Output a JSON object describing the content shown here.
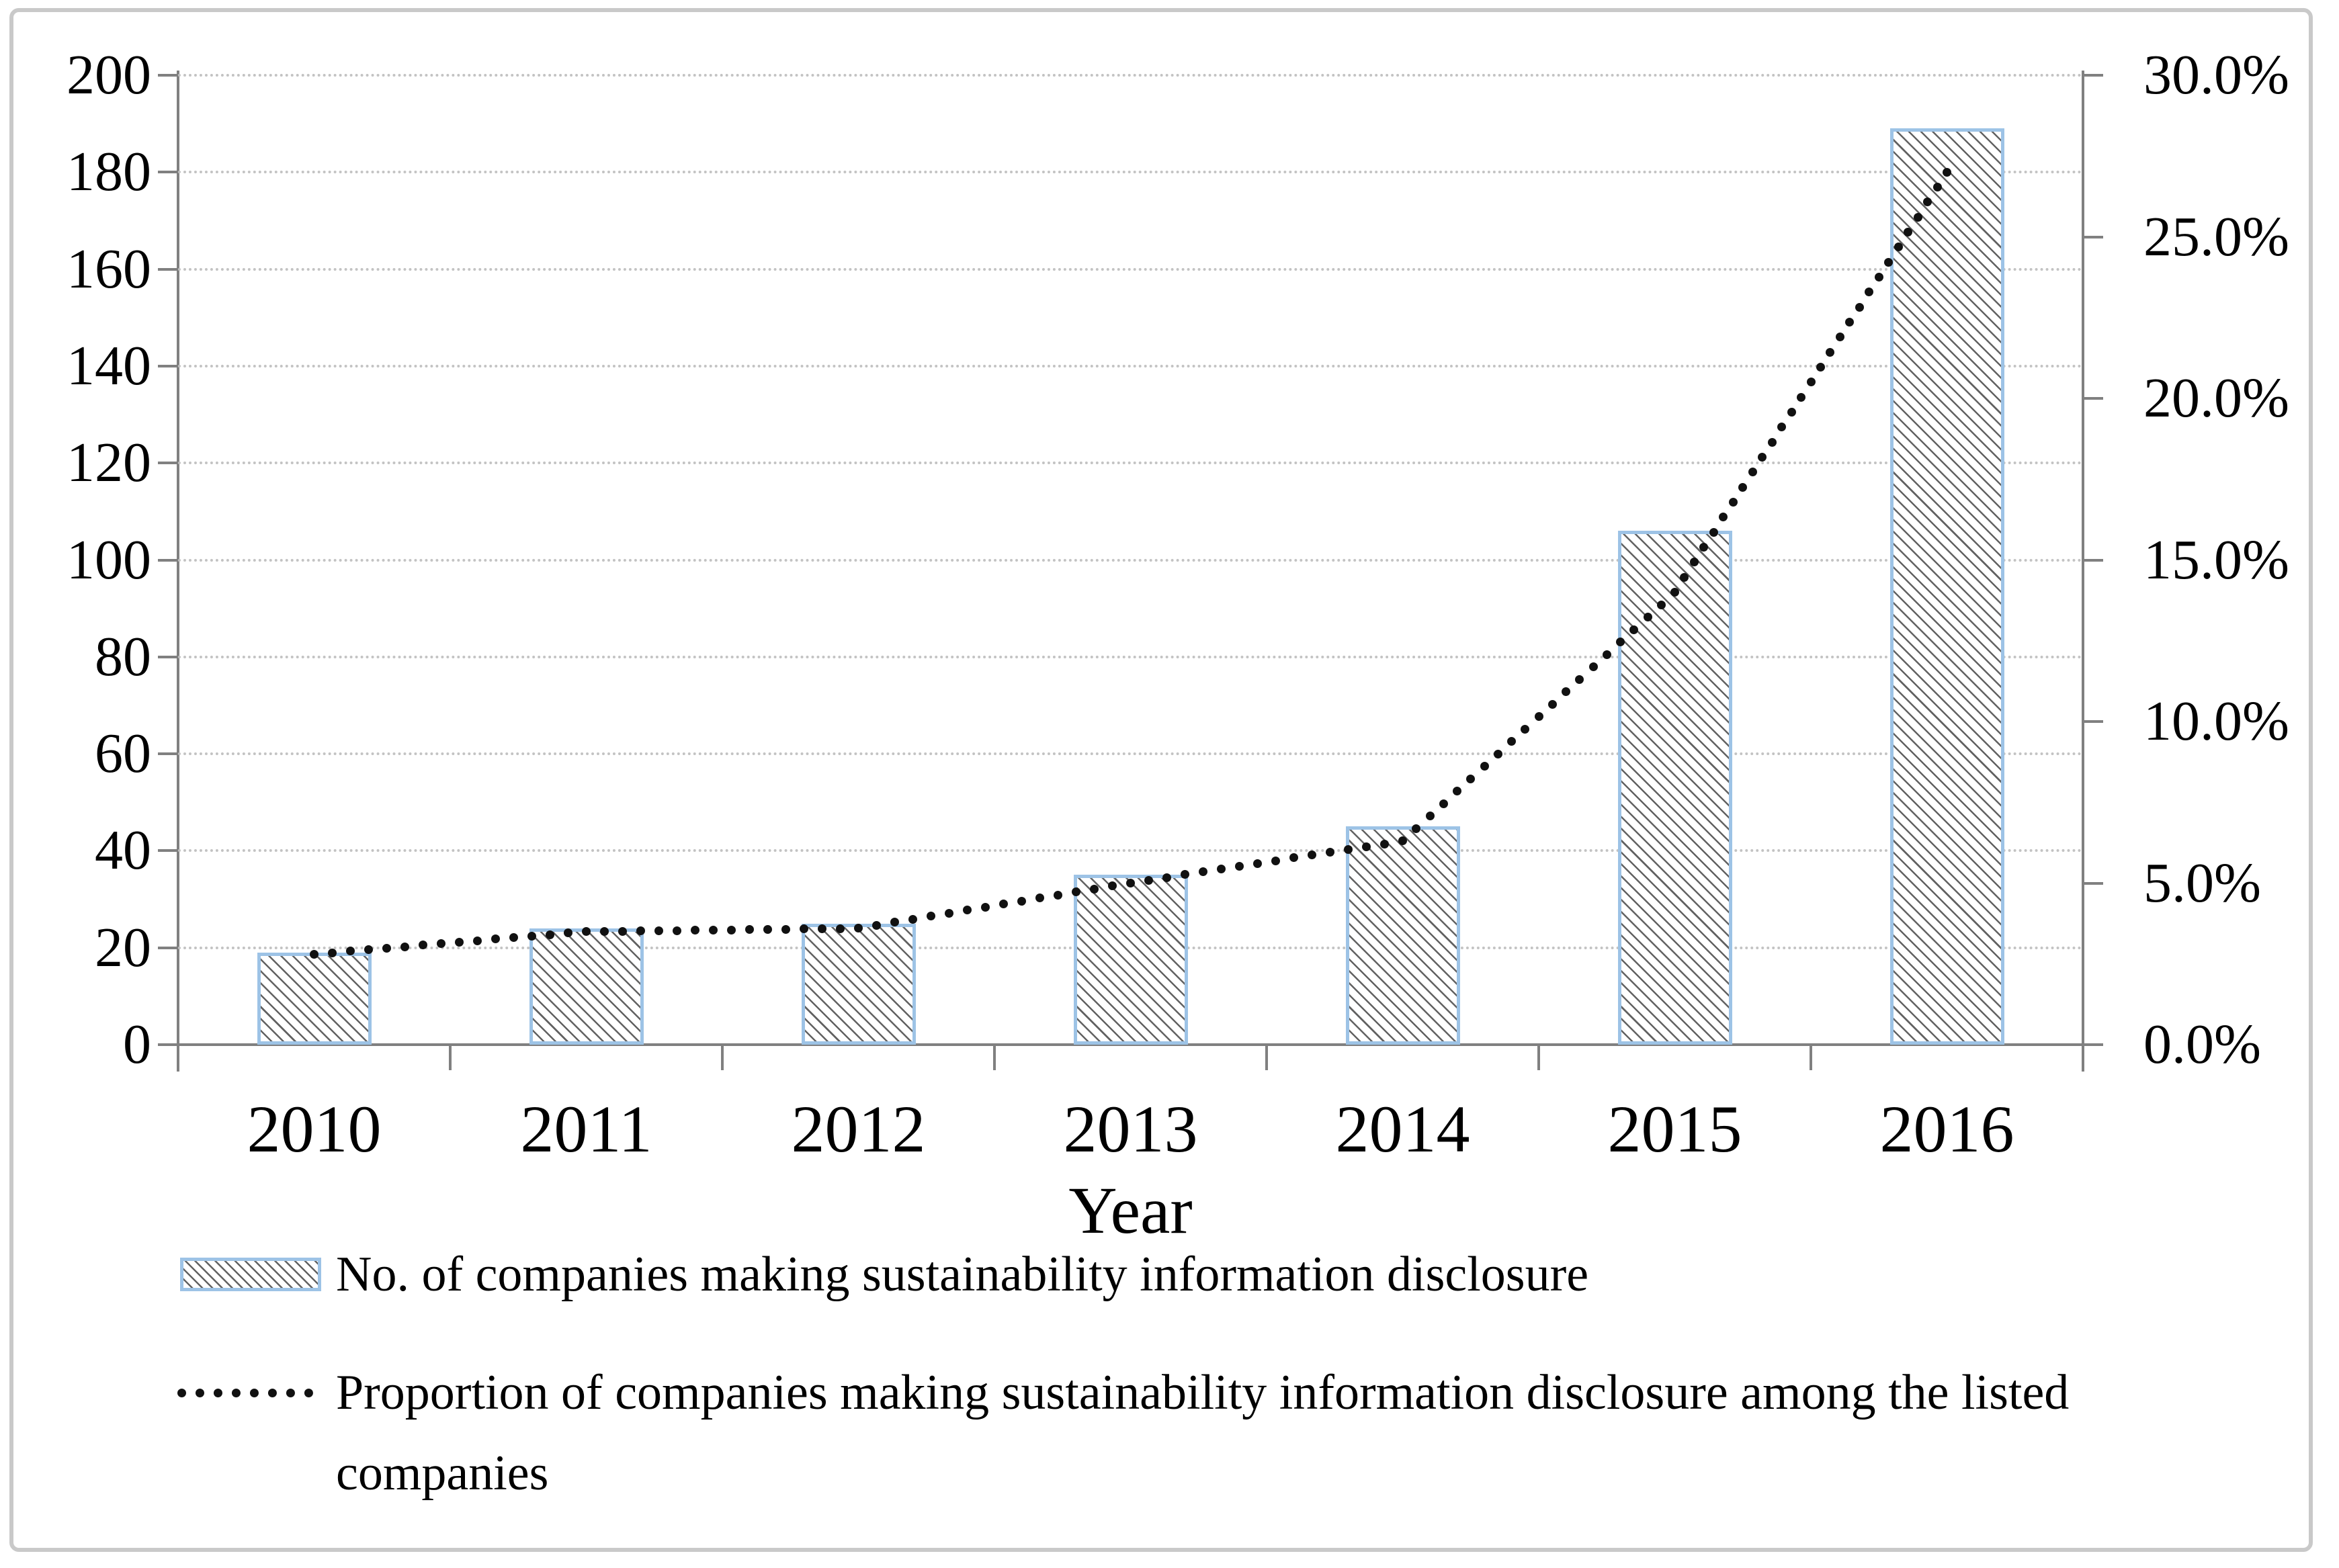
{
  "chart_data": {
    "type": "combo-bar-line-dual-axis",
    "title": "",
    "categories": [
      "2010",
      "2011",
      "2012",
      "2013",
      "2014",
      "2015",
      "2016"
    ],
    "series": [
      {
        "name": "No. of companies making sustainability information disclosure",
        "type": "bar",
        "axis": "left",
        "values": [
          19,
          24,
          25,
          35,
          45,
          106,
          189
        ]
      },
      {
        "name": "Proportion of companies making sustainability information disclosure among the listed companies",
        "type": "line",
        "line_style": "dotted",
        "axis": "right",
        "values_percent": [
          2.8,
          3.5,
          3.6,
          5.0,
          6.3,
          14.0,
          27.0
        ]
      }
    ],
    "xlabel": "Year",
    "left_axis": {
      "min": 0,
      "max": 200,
      "step": 20,
      "ticks": [
        "0",
        "20",
        "40",
        "60",
        "80",
        "100",
        "120",
        "140",
        "160",
        "180",
        "200"
      ]
    },
    "right_axis": {
      "min_percent": 0.0,
      "max_percent": 30.0,
      "step_percent": 5.0,
      "ticks": [
        "0.0%",
        "5.0%",
        "10.0%",
        "15.0%",
        "20.0%",
        "25.0%",
        "30.0%"
      ]
    },
    "grid": {
      "horizontal": true,
      "style": "dotted"
    },
    "legend_position": "bottom-left"
  },
  "colors": {
    "bar_border": "#9dc3e6",
    "bar_hatch": "#464646",
    "line_dots": "#111111",
    "gridline": "#c3c3c3",
    "axis": "#808080",
    "text": "#000000",
    "frame_border": "#c9c9c9"
  }
}
